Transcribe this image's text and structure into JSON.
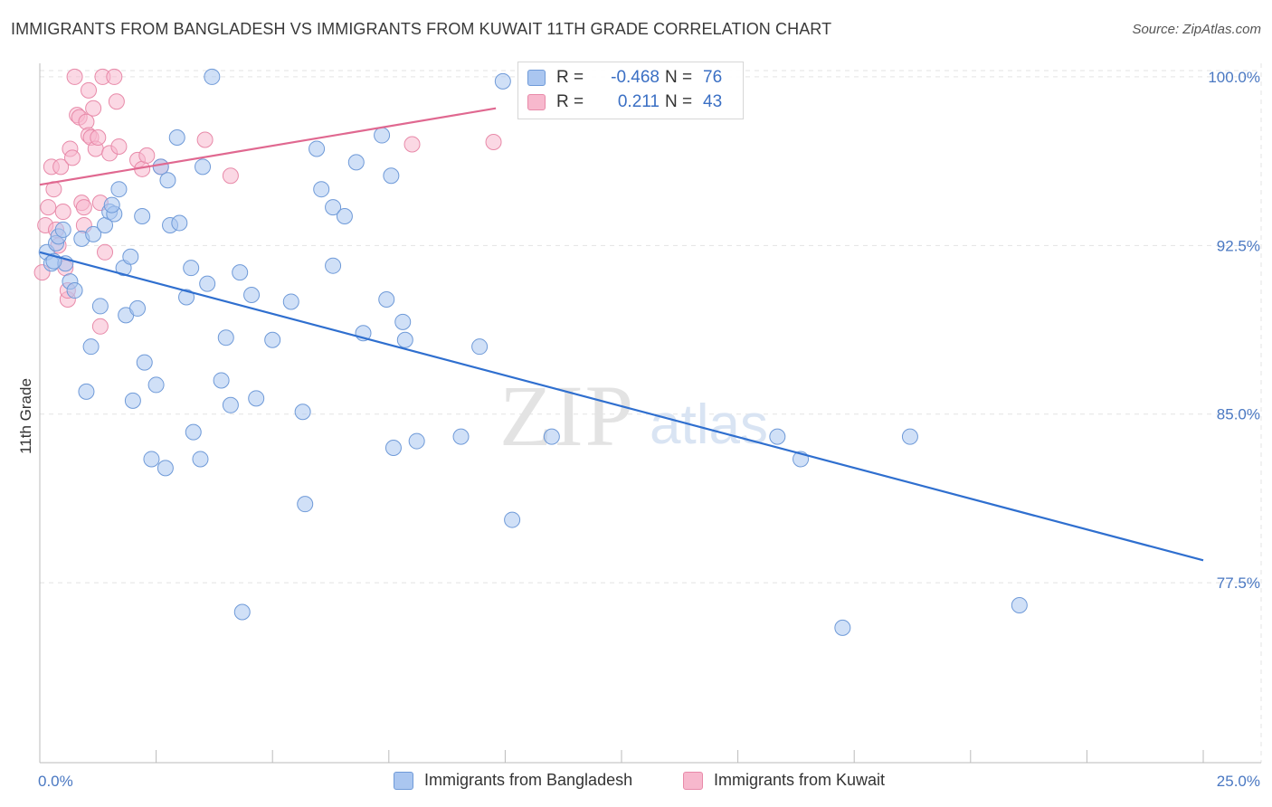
{
  "title": "IMMIGRANTS FROM BANGLADESH VS IMMIGRANTS FROM KUWAIT 11TH GRADE CORRELATION CHART",
  "source": "Source: ZipAtlas.com",
  "watermark": {
    "part1": "ZIP",
    "part2": "atlas"
  },
  "legend": {
    "rows": [
      {
        "r_label": "R =",
        "r_value": "-0.468",
        "n_label": "N =",
        "n_value": "76"
      },
      {
        "r_label": "R =",
        "r_value": "0.211",
        "n_label": "N =",
        "n_value": "43"
      }
    ]
  },
  "colors": {
    "blue_fill": "#aac6f0",
    "blue_stroke": "#6f9ad8",
    "blue_line": "#2f6fcf",
    "pink_fill": "#f7b8cd",
    "pink_stroke": "#e88aa9",
    "pink_line": "#e06890",
    "tick_text": "#4a78c2",
    "grid": "#e3e3e3"
  },
  "chart_data": {
    "type": "scatter",
    "title": "IMMIGRANTS FROM BANGLADESH VS IMMIGRANTS FROM KUWAIT 11TH GRADE CORRELATION CHART",
    "xlabel": "",
    "ylabel": "11th Grade",
    "xlim": [
      0,
      25
    ],
    "ylim": [
      69.5,
      100.6
    ],
    "x_tick_labels": [
      "0.0%",
      "25.0%"
    ],
    "y_ticks": [
      77.5,
      85.0,
      92.5,
      100.0
    ],
    "y_tick_labels": [
      "77.5%",
      "85.0%",
      "92.5%",
      "100.0%"
    ],
    "grid": true,
    "legend_position": "top-center",
    "series": [
      {
        "name": "Immigrants from Bangladesh",
        "color": "#aac6f0",
        "trend": {
          "x": [
            0,
            25
          ],
          "y": [
            92.2,
            78.5
          ]
        },
        "points": [
          [
            0.15,
            92.2
          ],
          [
            0.25,
            91.7
          ],
          [
            0.35,
            92.6
          ],
          [
            0.4,
            92.9
          ],
          [
            0.5,
            93.2
          ],
          [
            0.55,
            91.7
          ],
          [
            0.65,
            90.9
          ],
          [
            0.75,
            90.5
          ],
          [
            0.9,
            92.8
          ],
          [
            1.0,
            86.0
          ],
          [
            1.1,
            88.0
          ],
          [
            1.15,
            93.0
          ],
          [
            1.3,
            89.8
          ],
          [
            1.4,
            93.4
          ],
          [
            1.5,
            94.0
          ],
          [
            1.6,
            93.9
          ],
          [
            1.7,
            95.0
          ],
          [
            1.8,
            91.5
          ],
          [
            1.85,
            89.4
          ],
          [
            1.95,
            92.0
          ],
          [
            2.0,
            85.6
          ],
          [
            2.1,
            89.7
          ],
          [
            2.2,
            93.8
          ],
          [
            2.25,
            87.3
          ],
          [
            2.4,
            83.0
          ],
          [
            2.5,
            86.3
          ],
          [
            2.6,
            96.0
          ],
          [
            2.7,
            82.6
          ],
          [
            2.75,
            95.4
          ],
          [
            2.8,
            93.4
          ],
          [
            2.95,
            97.3
          ],
          [
            3.0,
            93.5
          ],
          [
            3.15,
            90.2
          ],
          [
            3.25,
            91.5
          ],
          [
            3.3,
            84.2
          ],
          [
            3.45,
            83.0
          ],
          [
            3.5,
            96.0
          ],
          [
            3.6,
            90.8
          ],
          [
            3.7,
            100.0
          ],
          [
            3.9,
            86.5
          ],
          [
            4.0,
            88.4
          ],
          [
            4.1,
            85.4
          ],
          [
            4.3,
            91.3
          ],
          [
            4.35,
            76.2
          ],
          [
            4.55,
            90.3
          ],
          [
            4.65,
            85.7
          ],
          [
            5.0,
            88.3
          ],
          [
            5.4,
            90.0
          ],
          [
            5.65,
            85.1
          ],
          [
            5.7,
            81.0
          ],
          [
            5.95,
            96.8
          ],
          [
            6.05,
            95.0
          ],
          [
            6.3,
            94.2
          ],
          [
            6.55,
            93.8
          ],
          [
            6.3,
            91.6
          ],
          [
            6.8,
            96.2
          ],
          [
            6.95,
            88.6
          ],
          [
            7.35,
            97.4
          ],
          [
            7.45,
            90.1
          ],
          [
            7.55,
            95.6
          ],
          [
            7.6,
            83.5
          ],
          [
            7.8,
            89.1
          ],
          [
            7.85,
            88.3
          ],
          [
            8.1,
            83.8
          ],
          [
            9.05,
            84.0
          ],
          [
            9.45,
            88.0
          ],
          [
            9.95,
            99.8
          ],
          [
            10.15,
            80.3
          ],
          [
            11.0,
            84.0
          ],
          [
            15.85,
            84.0
          ],
          [
            16.35,
            83.0
          ],
          [
            17.25,
            75.5
          ],
          [
            18.7,
            84.0
          ],
          [
            21.05,
            76.5
          ],
          [
            0.3,
            91.8
          ],
          [
            1.55,
            94.3
          ]
        ]
      },
      {
        "name": "Immigrants from Kuwait",
        "color": "#f7b8cd",
        "trend": {
          "x": [
            0,
            9.8
          ],
          "y": [
            95.2,
            98.6
          ]
        },
        "points": [
          [
            0.05,
            91.3
          ],
          [
            0.12,
            93.4
          ],
          [
            0.18,
            94.2
          ],
          [
            0.25,
            96.0
          ],
          [
            0.3,
            95.0
          ],
          [
            0.35,
            93.2
          ],
          [
            0.4,
            92.5
          ],
          [
            0.45,
            96.0
          ],
          [
            0.5,
            94.0
          ],
          [
            0.55,
            91.5
          ],
          [
            0.6,
            90.1
          ],
          [
            0.65,
            96.8
          ],
          [
            0.7,
            96.4
          ],
          [
            0.75,
            100.0
          ],
          [
            0.8,
            98.3
          ],
          [
            0.85,
            98.2
          ],
          [
            0.9,
            94.4
          ],
          [
            0.95,
            94.2
          ],
          [
            1.0,
            98.0
          ],
          [
            1.05,
            97.4
          ],
          [
            1.05,
            99.4
          ],
          [
            1.1,
            97.3
          ],
          [
            1.15,
            98.6
          ],
          [
            1.2,
            96.8
          ],
          [
            1.25,
            97.3
          ],
          [
            1.3,
            94.4
          ],
          [
            1.3,
            88.9
          ],
          [
            1.35,
            100.0
          ],
          [
            1.4,
            92.2
          ],
          [
            1.5,
            96.6
          ],
          [
            1.6,
            100.0
          ],
          [
            1.65,
            98.9
          ],
          [
            1.7,
            96.9
          ],
          [
            2.1,
            96.3
          ],
          [
            2.2,
            95.9
          ],
          [
            2.3,
            96.5
          ],
          [
            2.6,
            96.0
          ],
          [
            3.55,
            97.2
          ],
          [
            4.1,
            95.6
          ],
          [
            8.0,
            97.0
          ],
          [
            9.75,
            97.1
          ],
          [
            0.95,
            93.4
          ],
          [
            0.6,
            90.5
          ]
        ]
      }
    ]
  },
  "bottom_legend": [
    "Immigrants from Bangladesh",
    "Immigrants from Kuwait"
  ]
}
